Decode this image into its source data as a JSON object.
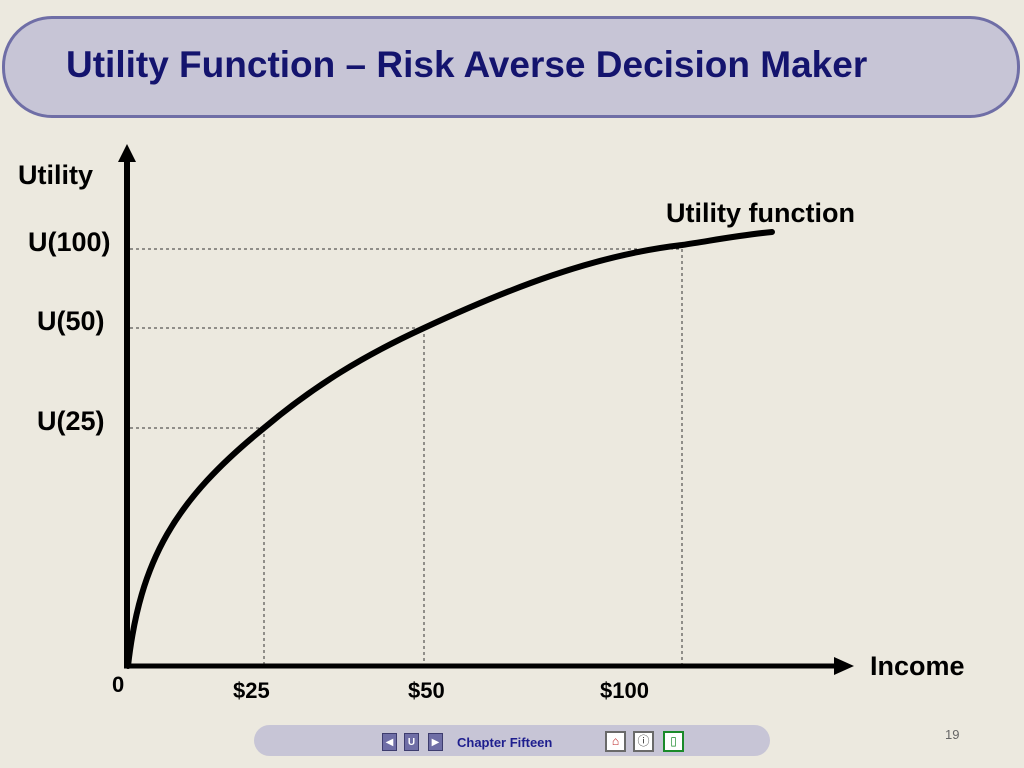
{
  "slide": {
    "title": "Utility Function – Risk Averse Decision Maker",
    "page_number": "19"
  },
  "chart_data": {
    "type": "line",
    "title": "Utility Function – Risk Averse Decision Maker",
    "xlabel": "Income",
    "ylabel": "Utility",
    "series": [
      {
        "name": "Utility function",
        "shape": "concave"
      }
    ],
    "reference_points": [
      {
        "x_label": "$25",
        "y_label": "U(25)"
      },
      {
        "x_label": "$50",
        "y_label": "U(50)"
      },
      {
        "x_label": "$100",
        "y_label": "U(100)"
      }
    ],
    "origin_label": "0",
    "guide_lines": "dashed"
  },
  "footer": {
    "chapter": "Chapter Fifteen",
    "prev_icon": "triangle-left-icon",
    "up_icon": "u-icon",
    "next_icon": "triangle-right-icon",
    "home_icon": "home-icon",
    "info_icon": "info-icon",
    "exit_icon": "exit-icon"
  },
  "colors": {
    "background": "#ece9df",
    "title_bar_fill": "#c7c5d6",
    "title_bar_border": "#6f6ea6",
    "title_text": "#14146e",
    "curve": "#000000"
  }
}
